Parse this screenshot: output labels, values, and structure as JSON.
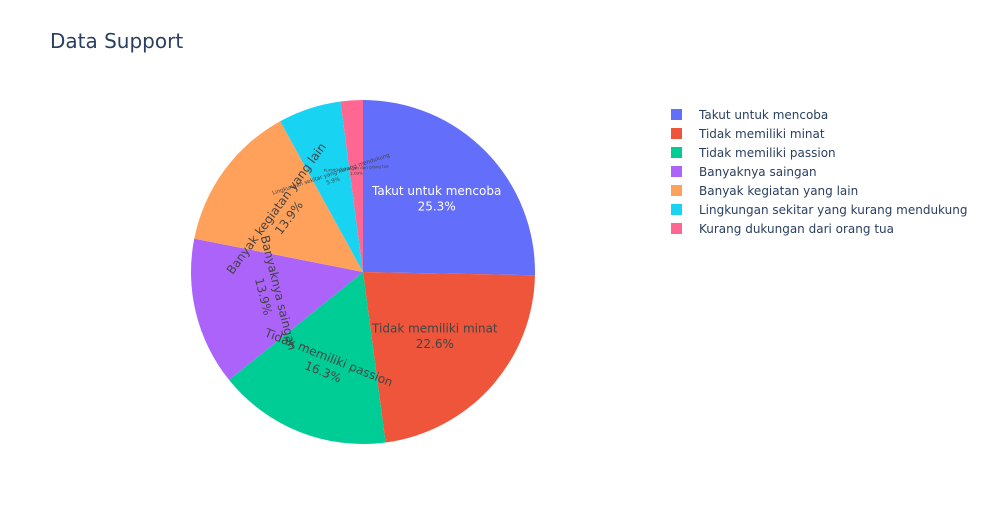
{
  "chart_data": {
    "type": "pie",
    "title": "Data Support",
    "direction": "clockwise",
    "start": "12 o'clock",
    "text_info": "label+percent",
    "legend_placement": "right",
    "slices": [
      {
        "label": "Takut untuk mencoba",
        "value": 25.3,
        "pct_label": "25.3%",
        "color": "#636efa",
        "text_color": "#ffffff"
      },
      {
        "label": "Tidak memiliki minat",
        "value": 22.6,
        "pct_label": "22.6%",
        "color": "#EF553B",
        "text_color": "#444444"
      },
      {
        "label": "Tidak memiliki passion",
        "value": 16.3,
        "pct_label": "16.3%",
        "color": "#00cc96",
        "text_color": "#444444"
      },
      {
        "label": "Banyaknya saingan",
        "value": 13.9,
        "pct_label": "13.9%",
        "color": "#ab63fa",
        "text_color": "#444444"
      },
      {
        "label": "Banyak kegiatan yang lain",
        "value": 13.9,
        "pct_label": "13.9%",
        "color": "#FFA15A",
        "text_color": "#444444"
      },
      {
        "label": "Lingkungan sekitar yang kurang mendukung",
        "value": 5.9,
        "pct_label": "5.9%",
        "color": "#19d3f3",
        "text_color": "#444444"
      },
      {
        "label": "Kurang dukungan dari orang tua",
        "value": 2.09,
        "pct_label": "2.09%",
        "color": "#FF6692",
        "text_color": "#444444"
      }
    ]
  }
}
